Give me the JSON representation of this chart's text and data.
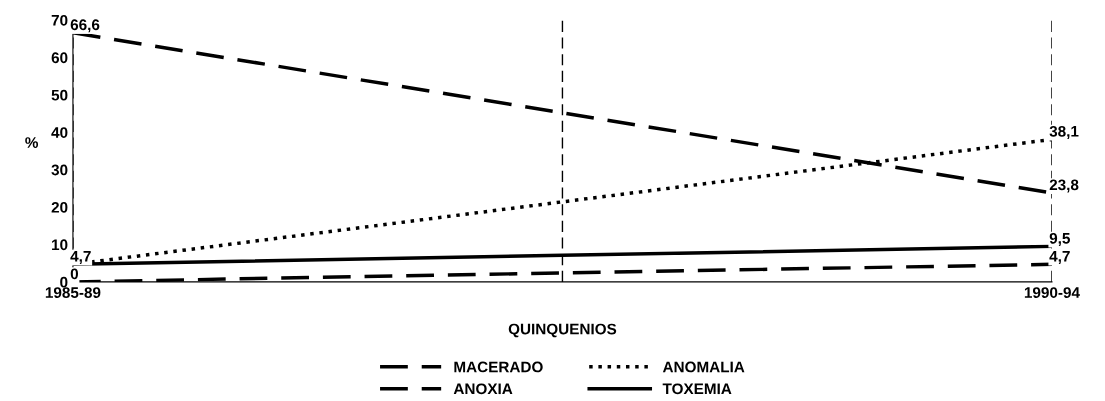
{
  "chart_data": {
    "type": "line",
    "xlabel": "QUINQUENIOS",
    "ylabel": "%",
    "categories": [
      "1985-89",
      null,
      "1990-94"
    ],
    "ylim": [
      0,
      70
    ],
    "yticks": [
      0,
      10,
      20,
      30,
      40,
      50,
      60,
      70
    ],
    "series": [
      {
        "name": "MACERADO",
        "color": "#000000",
        "line_style": "dashed",
        "values": [
          66.6,
          45.2,
          23.8
        ],
        "value_labels": [
          "66,6",
          null,
          "23,8"
        ]
      },
      {
        "name": "ANOXIA",
        "color": "#000000",
        "line_style": "dashed",
        "values": [
          0,
          2.4,
          4.7
        ],
        "value_labels": [
          "0",
          null,
          "4,7"
        ]
      },
      {
        "name": "ANOMALIA",
        "color": "#000000",
        "line_style": "dotted",
        "values": [
          4.7,
          21.4,
          38.1
        ],
        "value_labels": [
          "4,7",
          null,
          "38,1"
        ]
      },
      {
        "name": "TOXEMIA",
        "color": "#000000",
        "line_style": "solid",
        "values": [
          4.7,
          7.1,
          9.5
        ],
        "value_labels": [
          null,
          null,
          "9,5"
        ]
      }
    ],
    "grid": "x",
    "legend": "bottom"
  }
}
